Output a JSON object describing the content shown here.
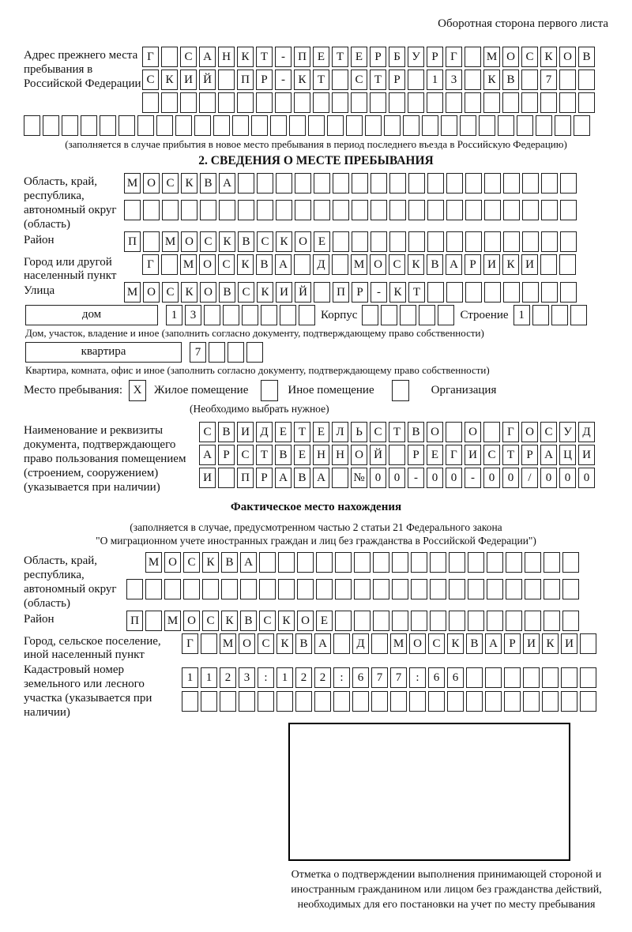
{
  "header": {
    "note": "Оборотная сторона первого листа"
  },
  "prev_address": {
    "label": "Адрес прежнего места пребывания в Российской Федерации",
    "row1": {
      "count": 24,
      "text": "Г САНКТ-ПЕТЕРБУРГ МОСКОВ"
    },
    "row2": {
      "count": 24,
      "text": "СКИЙ ПР-КТ СТР 13 КВ 7"
    },
    "row3": {
      "count": 24,
      "text": ""
    },
    "row4": {
      "count": 30,
      "text": ""
    },
    "note": "(заполняется в случае прибытия в новое место пребывания в период последнего въезда в Российскую Федерацию)"
  },
  "section2": {
    "title": "2. СВЕДЕНИЯ О МЕСТЕ ПРЕБЫВАНИЯ",
    "region": {
      "label": "Область, край, республика, автономный округ (область)",
      "row1": {
        "count": 24,
        "text": "МОСКВА"
      },
      "row2": {
        "count": 24,
        "text": ""
      }
    },
    "district": {
      "label": "Район",
      "row": {
        "count": 24,
        "text": "П МОСКВСКОЕ"
      }
    },
    "city": {
      "label": "Город или другой населенный пункт",
      "row": {
        "count": 23,
        "text": "Г МОСКВА Д МОСКВАРИКИ"
      }
    },
    "street": {
      "label": "Улица",
      "row": {
        "count": 24,
        "text": "МОСКОВСКИЙ ПР-КТ"
      }
    },
    "house": {
      "box_label": "дом",
      "cells": {
        "count": 8,
        "text": "13"
      },
      "korpus_label": "Корпус",
      "korpus_cells": {
        "count": 5,
        "text": ""
      },
      "stroenie_label": "Строение",
      "stroenie_cells": {
        "count": 4,
        "text": "1"
      },
      "note": "Дом, участок, владение и иное (заполнить согласно документу, подтверждающему право собственности)"
    },
    "apartment": {
      "box_label": "квартира",
      "cells": {
        "count": 4,
        "text": "7"
      },
      "note": "Квартира, комната, офис и иное (заполнить согласно документу, подтверждающему право собственности)"
    },
    "stay_type": {
      "label": "Место пребывания:",
      "options": [
        {
          "label": "Жилое помещение",
          "checked": "X"
        },
        {
          "label": "Иное помещение",
          "checked": ""
        },
        {
          "label": "Организация",
          "checked": ""
        }
      ],
      "note": "(Необходимо выбрать нужное)"
    },
    "document": {
      "label": "Наименование и реквизиты документа, подтверждающего право пользования помещением (строением, сооружением) (указывается при наличии)",
      "row1": {
        "count": 21,
        "text": "СВИДЕТЕЛЬСТВО О ГОСУД"
      },
      "row2": {
        "count": 21,
        "text": "АРСТВЕННОЙ РЕГИСТРАЦИ"
      },
      "row3": {
        "count": 21,
        "text": "И ПРАВА №00-00-00/000"
      }
    }
  },
  "actual_location": {
    "title": "Фактическое место нахождения",
    "note1": "(заполняется в случае, предусмотренном частью 2 статьи 21 Федерального закона",
    "note2": "\"О миграционном учете иностранных граждан и лиц без гражданства в Российской Федерации\")",
    "region": {
      "label": "Область, край, республика, автономный округ (область)",
      "row1": {
        "count": 23,
        "text": "МОСКВА"
      },
      "row2": {
        "count": 24,
        "text": ""
      }
    },
    "district": {
      "label": "Район",
      "row": {
        "count": 24,
        "text": "П МОСКВСКОЕ"
      }
    },
    "city": {
      "label": "Город, сельское поселение, иной населенный пункт",
      "row": {
        "count": 22,
        "text": "Г МОСКВА Д МОСКВАРИКИ"
      }
    },
    "cadastre": {
      "label": "Кадастровый номер земельного или лесного участка (указывается при наличии)",
      "row1": {
        "count": 22,
        "text": "1123:122:677:66"
      },
      "row2": {
        "count": 22,
        "text": ""
      }
    }
  },
  "stamp": {
    "caption": "Отметка о подтверждении выполнения принимающей стороной и иностранным гражданином или лицом без гражданства действий, необходимых для его постановки на учет по месту пребывания"
  }
}
